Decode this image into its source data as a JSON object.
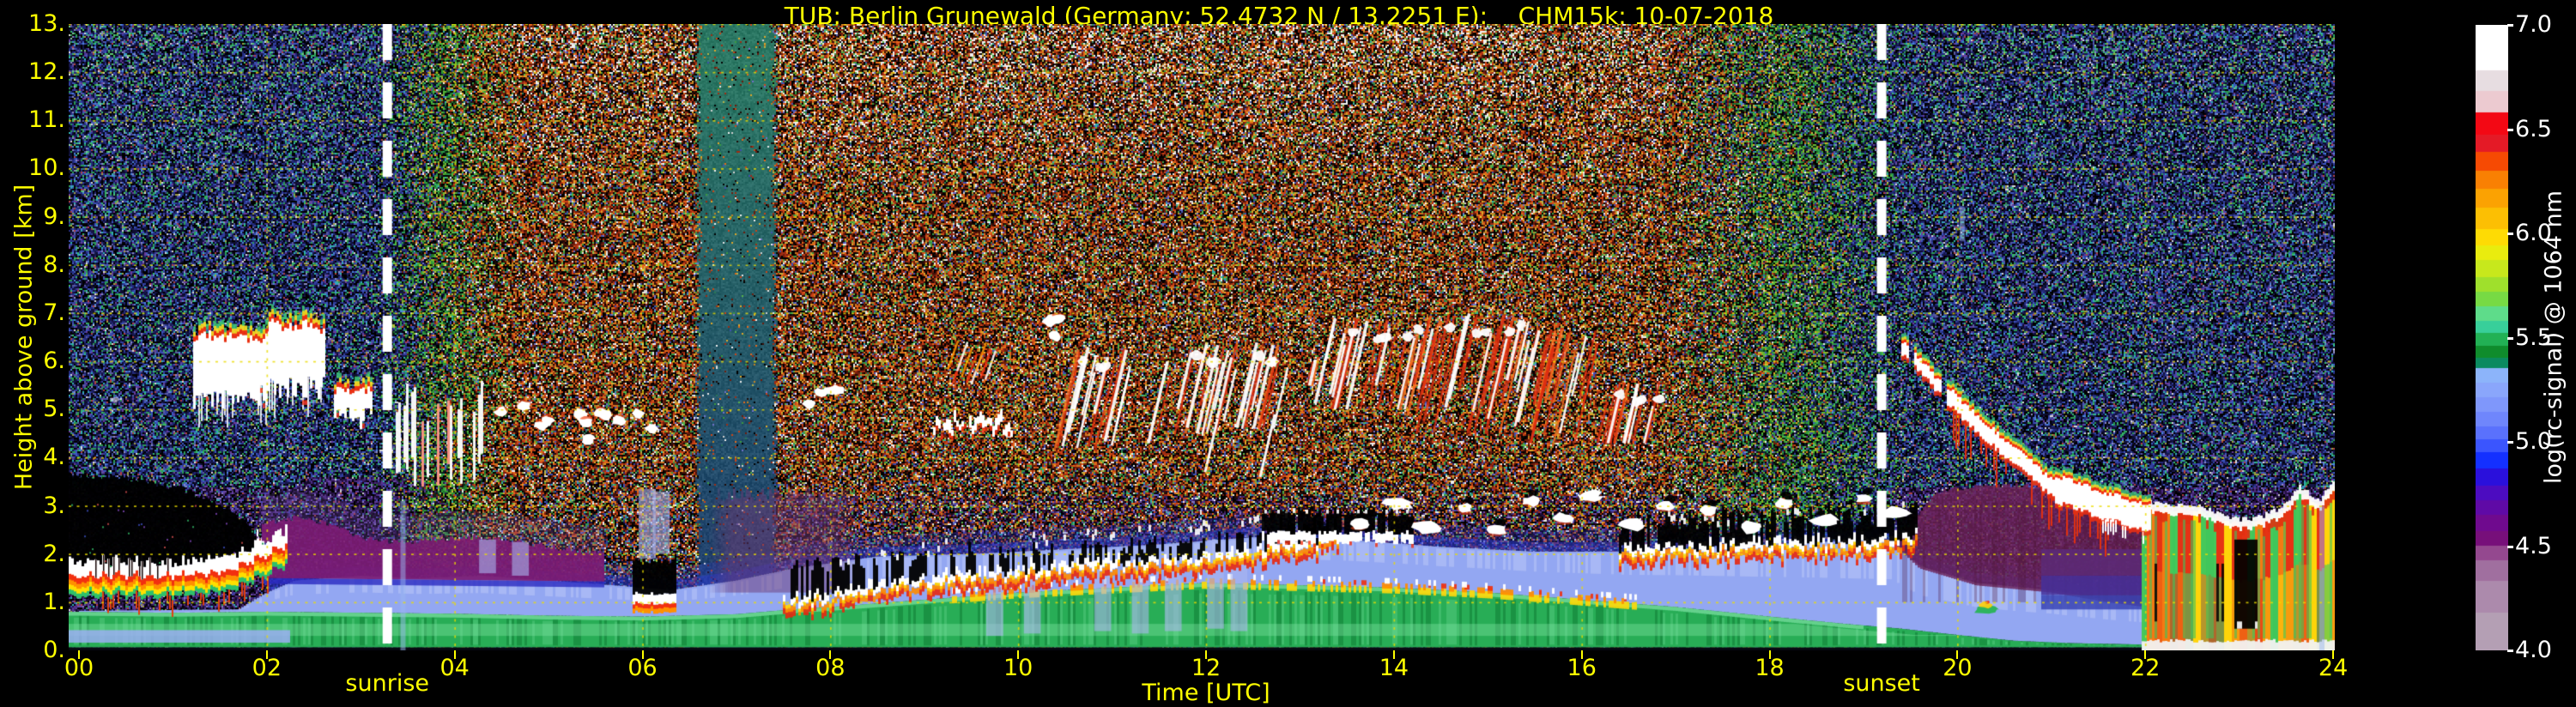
{
  "title": {
    "text": "TUB: Berlin Grunewald (Germany; 52.4732 N / 13.2251 E):    CHM15k: 10-07-2018"
  },
  "axes": {
    "x": {
      "title": "Time [UTC]",
      "tick_values": [
        0,
        2,
        4,
        6,
        8,
        10,
        12,
        14,
        16,
        18,
        20,
        22,
        24
      ],
      "tick_labels": [
        "00",
        "02",
        "04",
        "06",
        "08",
        "10",
        "12",
        "14",
        "16",
        "18",
        "20",
        "22",
        "24"
      ]
    },
    "y": {
      "title": "Height above ground [km]",
      "tick_values": [
        0,
        1,
        2,
        3,
        4,
        5,
        6,
        7,
        8,
        9,
        10,
        11,
        12,
        13
      ],
      "tick_labels": [
        "0.",
        "1.",
        "2.",
        "3.",
        "4.",
        "5.",
        "6.",
        "7.",
        "8.",
        "9.",
        "10.",
        "11.",
        "12.",
        "13."
      ]
    }
  },
  "colorbar": {
    "title": "log(rc-signal) @ 1064 nm",
    "tick_values": [
      7.0,
      6.5,
      6.0,
      5.5,
      5.0,
      4.5,
      4.0
    ],
    "tick_labels": [
      "7.0",
      "6.5",
      "6.0",
      "5.5",
      "5.0",
      "4.5",
      "4.0"
    ],
    "range": [
      4.0,
      7.0
    ]
  },
  "annotations": {
    "sunrise": {
      "label": "sunrise",
      "time_utc": 3.283
    },
    "sunset": {
      "label": "sunset",
      "time_utc": 19.193
    }
  },
  "colors": {
    "background": "#000000",
    "label_yellow": "#ffff00",
    "label_white": "#ffffff",
    "grid": "rgba(235,220,0,0.8)",
    "sun_line": "#ffffff"
  },
  "chart_data": {
    "type": "heatmap",
    "title": "TUB: Berlin Grunewald (Germany; 52.4732 N / 13.2251 E):    CHM15k: 10-07-2018",
    "xlabel": "Time [UTC]",
    "ylabel": "Height above ground [km]",
    "x_range_hours": [
      0,
      24
    ],
    "y_range_km": [
      0,
      13
    ],
    "value_label": "log(rc-signal) @ 1064 nm",
    "value_range": [
      4.0,
      7.0
    ],
    "grid": "dashed yellow every 2 h and every 1 km",
    "sun_lines_utc": [
      3.283,
      19.193
    ],
    "colormap_stops": [
      [
        7.0,
        "#ffffff"
      ],
      [
        6.85,
        "#ffffff"
      ],
      [
        6.78,
        "#e7dde1"
      ],
      [
        6.68,
        "#eccad0"
      ],
      [
        6.58,
        "#f30814"
      ],
      [
        6.47,
        "#e41a26"
      ],
      [
        6.39,
        "#f64a03"
      ],
      [
        6.3,
        "#f98003"
      ],
      [
        6.21,
        "#fba202"
      ],
      [
        6.12,
        "#fcbf03"
      ],
      [
        6.02,
        "#fedb04"
      ],
      [
        5.94,
        "#e9ec0e"
      ],
      [
        5.87,
        "#c7e81c"
      ],
      [
        5.79,
        "#9fe02c"
      ],
      [
        5.72,
        "#77da44"
      ],
      [
        5.65,
        "#5edc8a"
      ],
      [
        5.58,
        "#38cf9a"
      ],
      [
        5.52,
        "#22b155"
      ],
      [
        5.46,
        "#0f8c2c"
      ],
      [
        5.4,
        "#0b8a60"
      ],
      [
        5.35,
        "#8cb4fa"
      ],
      [
        5.28,
        "#8aa6fb"
      ],
      [
        5.21,
        "#7f97fb"
      ],
      [
        5.14,
        "#6f86fc"
      ],
      [
        5.07,
        "#5a71fd"
      ],
      [
        5.01,
        "#3b55fe"
      ],
      [
        4.95,
        "#1430ff"
      ],
      [
        4.87,
        "#2a10dc"
      ],
      [
        4.79,
        "#4c0cc0"
      ],
      [
        4.72,
        "#5f0aa6"
      ],
      [
        4.65,
        "#6f0a8e"
      ],
      [
        4.57,
        "#770f7a"
      ],
      [
        4.5,
        "#94488f"
      ],
      [
        4.43,
        "#a06f9f"
      ],
      [
        4.33,
        "#ac8aac"
      ],
      [
        4.18,
        "#b49fb4"
      ],
      [
        4.0,
        "#b8a7b8"
      ]
    ],
    "features": {
      "boundary_layer": {
        "green_top": [
          [
            0,
            0.8
          ],
          [
            1,
            0.78
          ],
          [
            2,
            0.8
          ],
          [
            3,
            0.78
          ],
          [
            4,
            0.76
          ],
          [
            5,
            0.72
          ],
          [
            6,
            0.7
          ],
          [
            7,
            0.75
          ],
          [
            7.6,
            0.85
          ],
          [
            8,
            0.9
          ],
          [
            9,
            1.05
          ],
          [
            10,
            1.2
          ],
          [
            11,
            1.3
          ],
          [
            12,
            1.4
          ],
          [
            13,
            1.35
          ],
          [
            14,
            1.3
          ],
          [
            15,
            1.2
          ],
          [
            16,
            1.05
          ],
          [
            17,
            0.9
          ],
          [
            18,
            0.7
          ],
          [
            18.8,
            0.55
          ],
          [
            19.4,
            0.45
          ],
          [
            20,
            0.32
          ],
          [
            20.6,
            0.2
          ],
          [
            21.2,
            0.15
          ],
          [
            22,
            0.12
          ],
          [
            24,
            0.12
          ]
        ],
        "blue_top": [
          [
            0,
            0.82
          ],
          [
            1.7,
            0.85
          ],
          [
            2,
            1.2
          ],
          [
            2.3,
            1.45
          ],
          [
            3,
            1.55
          ],
          [
            3.6,
            1.5
          ],
          [
            4.3,
            1.55
          ],
          [
            5,
            1.45
          ],
          [
            5.7,
            1.35
          ],
          [
            6.3,
            1.25
          ],
          [
            7,
            1.45
          ],
          [
            7.6,
            1.7
          ],
          [
            8.5,
            1.95
          ],
          [
            9.5,
            2.0
          ],
          [
            10.5,
            2.1
          ],
          [
            11.5,
            2.2
          ],
          [
            12.5,
            2.35
          ],
          [
            13.5,
            2.3
          ],
          [
            14.5,
            2.15
          ],
          [
            15.5,
            2.05
          ],
          [
            16.5,
            2.05
          ],
          [
            17.5,
            2.15
          ],
          [
            18.5,
            2.25
          ],
          [
            19.3,
            2.3
          ],
          [
            19.6,
            1.75
          ],
          [
            20.2,
            1.4
          ],
          [
            21,
            1.25
          ],
          [
            21.6,
            1.05
          ],
          [
            22,
            0.95
          ],
          [
            22.3,
            0.6
          ],
          [
            24,
            0.6
          ]
        ],
        "low_blue_sliver_t": [
          0,
          2.25
        ]
      },
      "night_strong_layer": {
        "t": [
          0,
          2.2
        ],
        "center": [
          [
            0,
            1.5
          ],
          [
            0.5,
            1.52
          ],
          [
            1,
            1.5
          ],
          [
            1.4,
            1.55
          ],
          [
            1.7,
            1.7
          ],
          [
            2.0,
            1.95
          ],
          [
            2.2,
            2.1
          ]
        ]
      },
      "attenuation_black": {
        "t": [
          0,
          2.0
        ],
        "top": [
          [
            0,
            3.65
          ],
          [
            0.6,
            3.55
          ],
          [
            1.1,
            3.35
          ],
          [
            1.5,
            3.05
          ],
          [
            1.8,
            2.6
          ],
          [
            2.0,
            2.15
          ]
        ]
      },
      "magenta_wedge": {
        "t": [
          1.95,
          5.6
        ],
        "top": [
          [
            1.95,
            2.6
          ],
          [
            2.3,
            2.75
          ],
          [
            2.7,
            2.6
          ],
          [
            3.0,
            2.35
          ],
          [
            3.4,
            2.25
          ],
          [
            3.8,
            2.3
          ],
          [
            4.2,
            2.35
          ],
          [
            4.7,
            2.25
          ],
          [
            5.2,
            2.1
          ],
          [
            5.6,
            2.0
          ]
        ],
        "bottom": 1.5,
        "color": "#7c1c74"
      },
      "mauve_region": {
        "t": [
          6.7,
          8.3
        ],
        "h": [
          1.2,
          3.4
        ],
        "color": "#6e3a74"
      },
      "stratus_top_segment": {
        "t": [
          5.9,
          6.35
        ],
        "center": 1.05,
        "black_top": 1.8
      },
      "bl_top_line": {
        "t": [
          7.5,
          13.4
        ],
        "center": [
          [
            7.5,
            1.0
          ],
          [
            8,
            1.05
          ],
          [
            8.6,
            1.3
          ],
          [
            9.2,
            1.45
          ],
          [
            10,
            1.6
          ],
          [
            11,
            1.75
          ],
          [
            12,
            1.85
          ],
          [
            12.6,
            2.05
          ],
          [
            13,
            2.15
          ],
          [
            13.4,
            2.3
          ]
        ]
      },
      "stratocu_band": {
        "t": [
          12.6,
          14.2
        ],
        "white": [
          2.25,
          2.45
        ],
        "black": [
          2.45,
          2.8
        ]
      },
      "bl_top_line2": {
        "t": [
          16.4,
          19.55
        ],
        "center": [
          [
            16.4,
            2.0
          ],
          [
            17,
            2.05
          ],
          [
            17.6,
            2.1
          ],
          [
            18.2,
            2.15
          ],
          [
            19,
            2.2
          ],
          [
            19.55,
            2.3
          ]
        ]
      },
      "cumulus_blobs": [
        [
          13.62,
          2.62
        ],
        [
          14.05,
          3.05
        ],
        [
          14.35,
          2.55
        ],
        [
          14.75,
          2.95
        ],
        [
          15.1,
          2.5
        ],
        [
          15.45,
          3.1
        ],
        [
          15.8,
          2.75
        ],
        [
          16.1,
          3.2
        ],
        [
          16.55,
          2.6
        ],
        [
          16.9,
          3.0
        ],
        [
          17.35,
          2.9
        ],
        [
          17.8,
          2.55
        ],
        [
          18.15,
          3.05
        ],
        [
          18.6,
          2.7
        ],
        [
          19.0,
          3.15
        ],
        [
          19.35,
          2.85
        ]
      ],
      "night_clouds": [
        {
          "t": [
            1.22,
            2.02
          ],
          "h": [
            5.0,
            6.75
          ],
          "virga_to": 4.55,
          "style": "fringed"
        },
        {
          "t": [
            2.02,
            2.62
          ],
          "h": [
            5.2,
            6.95
          ],
          "virga_to": 4.8,
          "style": "fringed"
        },
        {
          "t": [
            2.72,
            3.12
          ],
          "h": [
            4.55,
            5.6
          ],
          "style": "fringed"
        },
        {
          "t": [
            3.35,
            4.4
          ],
          "h": [
            3.3,
            5.6
          ],
          "style": "streaks"
        },
        {
          "t": [
            4.45,
            5.45
          ],
          "h": [
            4.35,
            5.15
          ],
          "style": "blobs"
        },
        {
          "t": [
            5.55,
            6.1
          ],
          "h": [
            4.6,
            5.05
          ],
          "style": "blobs"
        },
        {
          "t": [
            7.75,
            8.1
          ],
          "h": [
            5.1,
            5.5
          ],
          "style": "blobs"
        }
      ],
      "morning_clouds": [
        {
          "t": [
            9.1,
            9.95
          ],
          "h": [
            4.4,
            5.0
          ],
          "style": "jagged-line"
        },
        {
          "t": [
            9.25,
            9.7
          ],
          "h": [
            5.5,
            6.55
          ],
          "style": "orange-streaks"
        },
        {
          "t": [
            10.25,
            10.55
          ],
          "h": [
            6.5,
            7.0
          ],
          "style": "blobs"
        }
      ],
      "midday_virga": [
        {
          "t": [
            10.55,
            11.2
          ],
          "h": [
            4.2,
            6.3
          ],
          "white": 1.0,
          "red": 0.4
        },
        {
          "t": [
            11.5,
            11.68
          ],
          "h": [
            4.3,
            6.0
          ],
          "white": 0.0,
          "red": 0.0,
          "style": "streak"
        },
        {
          "t": [
            11.78,
            12.35
          ],
          "h": [
            4.5,
            6.4
          ],
          "white": 1.0,
          "red": 0.5,
          "streak_to": 3.7
        },
        {
          "t": [
            12.48,
            12.9
          ],
          "h": [
            4.6,
            6.4
          ],
          "white": 1.0,
          "red": 0.5,
          "streak_to": 3.6
        },
        {
          "t": [
            13.05,
            13.3
          ],
          "h": [
            5.5,
            6.1
          ],
          "white": 0.2,
          "red": 0.6
        },
        {
          "t": [
            13.35,
            14.35
          ],
          "h": [
            5.0,
            6.9
          ],
          "white": 0.7,
          "red": 0.6
        },
        {
          "t": [
            14.35,
            15.45
          ],
          "h": [
            4.5,
            7.0
          ],
          "white": 0.5,
          "red": 1.0
        },
        {
          "t": [
            15.45,
            16.2
          ],
          "h": [
            4.3,
            6.7
          ],
          "white": 0.4,
          "red": 1.0
        },
        {
          "t": [
            16.25,
            16.95
          ],
          "h": [
            4.3,
            5.6
          ],
          "white": 0.5,
          "red": 0.8
        }
      ],
      "evening_descent": {
        "path": [
          [
            19.42,
            6.3
          ],
          [
            19.9,
            5.3
          ],
          [
            20.3,
            4.55
          ],
          [
            21.0,
            3.4
          ],
          [
            21.6,
            3.0
          ],
          [
            22.05,
            2.75
          ]
        ]
      },
      "small_evening_blob": [
        20.3,
        0.9
      ],
      "precip": {
        "t": [
          21.95,
          24
        ],
        "cloud_top": [
          [
            21.95,
            3.05
          ],
          [
            22.2,
            2.9
          ],
          [
            22.5,
            2.95
          ],
          [
            22.8,
            2.75
          ],
          [
            23.0,
            2.6
          ],
          [
            23.2,
            2.65
          ],
          [
            23.45,
            2.85
          ],
          [
            23.65,
            3.3
          ],
          [
            23.85,
            3.0
          ],
          [
            24,
            3.35
          ]
        ],
        "black_gap_t": [
          22.95,
          23.2
        ],
        "colors": [
          "#e63214",
          "#f57a12",
          "#ffd409",
          "#46c85a"
        ]
      },
      "maroon_region": {
        "t": [
          19.35,
          22.1
        ],
        "top": [
          [
            19.35,
            2.3
          ],
          [
            19.8,
            3.3
          ],
          [
            20.3,
            3.45
          ],
          [
            21,
            3.4
          ],
          [
            21.5,
            3.2
          ],
          [
            22.1,
            2.9
          ]
        ],
        "color": "#6e2358"
      },
      "purple_layers": {
        "t": [
          20.9,
          22.1
        ],
        "bands": [
          [
            1.55,
            2.1,
            "#5c2a78"
          ],
          [
            1.15,
            1.55,
            "#45309a"
          ],
          [
            0.85,
            1.15,
            "#3944b4"
          ]
        ]
      },
      "lavender_columns": [
        {
          "t": 6.05,
          "h": [
            1.9,
            3.35
          ]
        },
        {
          "t": 6.2,
          "h": [
            2.0,
            3.3
          ]
        },
        {
          "t": 4.35,
          "h": [
            1.6,
            2.3
          ]
        },
        {
          "t": 4.7,
          "h": [
            1.55,
            2.25
          ]
        },
        {
          "t": 9.75,
          "h": [
            0.3,
            2.0
          ]
        },
        {
          "t": 10.15,
          "h": [
            0.35,
            2.05
          ]
        },
        {
          "t": 10.9,
          "h": [
            0.4,
            2.1
          ]
        },
        {
          "t": 11.3,
          "h": [
            0.35,
            2.15
          ]
        },
        {
          "t": 11.65,
          "h": [
            0.4,
            2.2
          ]
        },
        {
          "t": 12.1,
          "h": [
            0.45,
            2.3
          ]
        },
        {
          "t": 12.35,
          "h": [
            0.4,
            2.3
          ]
        }
      ],
      "vertical_streaks": [
        {
          "t": 3.45,
          "h": [
            0,
            3.1
          ]
        },
        {
          "t": 23.88,
          "h": [
            0,
            3.0
          ]
        },
        {
          "t": 20.05,
          "h": [
            8.5,
            9.2
          ]
        }
      ],
      "noise": {
        "sunrise_ramp": [
          3.35,
          4.3
        ],
        "sunset_ramp": [
          16.9,
          19.0
        ],
        "smooth_column_t": [
          6.55,
          7.45
        ]
      }
    }
  }
}
